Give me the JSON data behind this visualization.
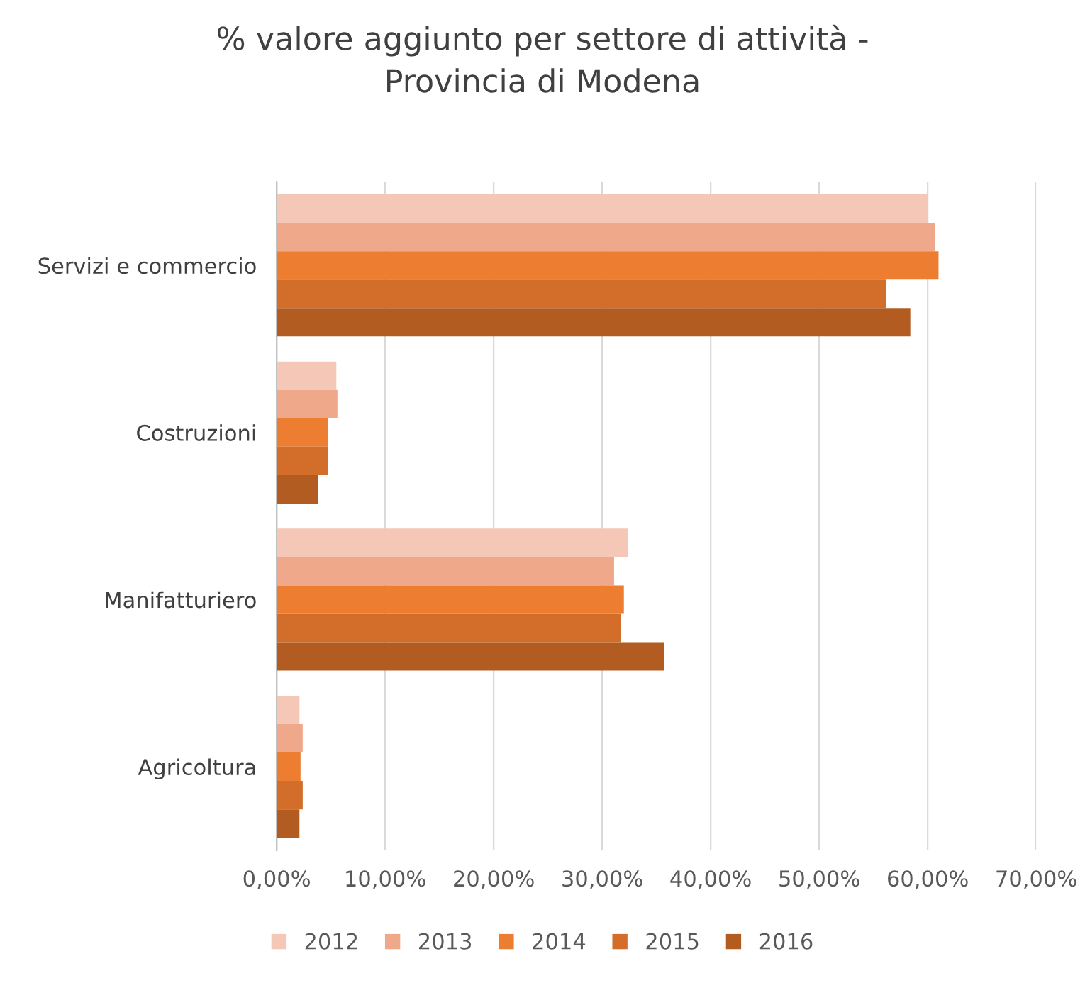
{
  "chart_data": {
    "type": "bar",
    "orientation": "horizontal",
    "title": "% valore aggiunto per settore di attività -\nProvincia di Modena",
    "categories": [
      "Servizi e commercio",
      "Costruzioni",
      "Manifatturiero",
      "Agricoltura"
    ],
    "series": [
      {
        "name": "2012",
        "color": "#f4c7b6",
        "values": [
          60.0,
          5.5,
          32.4,
          2.1
        ]
      },
      {
        "name": "2013",
        "color": "#f0a88a",
        "values": [
          60.7,
          5.6,
          31.1,
          2.4
        ]
      },
      {
        "name": "2014",
        "color": "#ed7d31",
        "values": [
          61.0,
          4.7,
          32.0,
          2.2
        ]
      },
      {
        "name": "2015",
        "color": "#d36e2a",
        "values": [
          56.2,
          4.7,
          31.7,
          2.4
        ]
      },
      {
        "name": "2016",
        "color": "#b35c21",
        "values": [
          58.4,
          3.8,
          35.7,
          2.1
        ]
      }
    ],
    "xlim": [
      0,
      70
    ],
    "xticks": [
      {
        "value": 0,
        "label": "0,00%"
      },
      {
        "value": 10,
        "label": "10,00%"
      },
      {
        "value": 20,
        "label": "20,00%"
      },
      {
        "value": 30,
        "label": "30,00%"
      },
      {
        "value": 40,
        "label": "40,00%"
      },
      {
        "value": 50,
        "label": "50,00%"
      },
      {
        "value": 60,
        "label": "60,00%"
      },
      {
        "value": 70,
        "label": "70,00%"
      }
    ],
    "grid": "x",
    "legend": "bottom"
  }
}
